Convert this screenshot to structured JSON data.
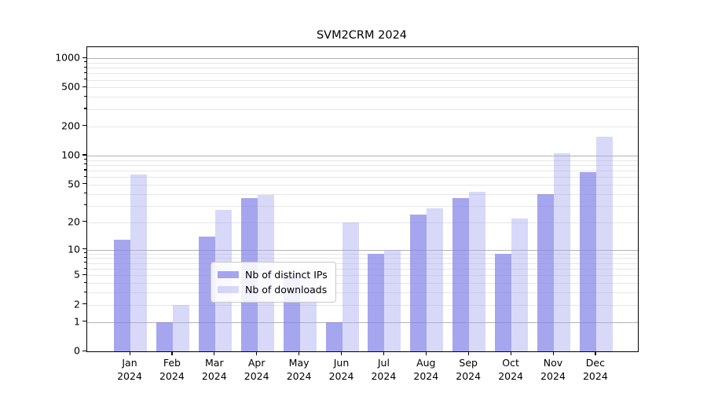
{
  "title": "SVM2CRM 2024",
  "chart_data": {
    "type": "bar",
    "title": "SVM2CRM 2024",
    "categories": [
      "Jan",
      "Feb",
      "Mar",
      "Apr",
      "May",
      "Jun",
      "Jul",
      "Aug",
      "Sep",
      "Oct",
      "Nov",
      "Dec"
    ],
    "year_label": "2024",
    "series": [
      {
        "name": "Nb of distinct IPs",
        "values": [
          13,
          1,
          14,
          36,
          5,
          1,
          9,
          24,
          36,
          9,
          40,
          67
        ],
        "color": "rgba(132,132,231,0.72)"
      },
      {
        "name": "Nb of downloads",
        "values": [
          64,
          2,
          27,
          39,
          6,
          20,
          10,
          28,
          42,
          22,
          105,
          155
        ],
        "color": "rgba(168,168,242,0.45)"
      }
    ],
    "xlabel": "",
    "ylabel": "",
    "ylim": [
      0,
      1000
    ],
    "y_scale": "log10(1+v)",
    "y_ticks": [
      0,
      1,
      2,
      5,
      10,
      20,
      50,
      100,
      200,
      500,
      1000
    ],
    "y_major_grid": [
      1,
      10,
      100,
      1000
    ],
    "y_minor_grid": [
      2,
      3,
      4,
      5,
      6,
      7,
      8,
      9,
      20,
      30,
      40,
      50,
      60,
      70,
      80,
      90,
      200,
      300,
      400,
      500,
      600,
      700,
      800,
      900
    ],
    "grid": "horizontal",
    "legend_position": "inside-bottom-center"
  },
  "colors": {
    "major_grid": "#b3b3b3",
    "minor_grid": "#e6e6e6",
    "spine": "#000000",
    "legend_border": "#c9c9c9",
    "background": "#ffffff"
  }
}
